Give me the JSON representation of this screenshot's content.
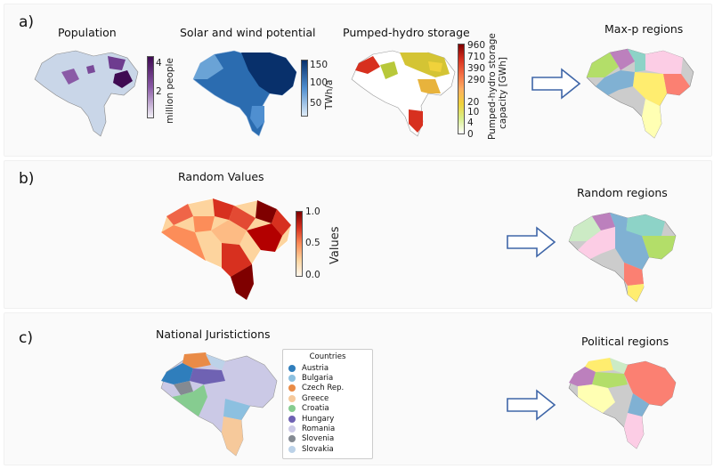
{
  "panel_a": {
    "letter": "a)",
    "maps": [
      {
        "title": "Population",
        "colorbar_label": "million people",
        "ticks": [
          "4",
          "2"
        ]
      },
      {
        "title": "Solar and wind potential",
        "colorbar_label": "TWh/a",
        "ticks": [
          "150",
          "100",
          "50"
        ]
      },
      {
        "title": "Pumped-hydro storage",
        "colorbar_label_line1": "Pumped-hydro storage",
        "colorbar_label_line2": "capacity [GWh]",
        "ticks": [
          "960",
          "710",
          "390",
          "290",
          "20",
          "10",
          "4",
          "0"
        ]
      }
    ],
    "result_title": "Max-p regions"
  },
  "panel_b": {
    "letter": "b)",
    "map_title": "Random Values",
    "colorbar_label": "Values",
    "ticks": [
      "1.0",
      "0.5",
      "0.0"
    ],
    "result_title": "Random regions"
  },
  "panel_c": {
    "letter": "c)",
    "map_title": "National Juristictions",
    "legend_title": "Countries",
    "legend": [
      {
        "name": "Austria",
        "color": "#2f7ebc"
      },
      {
        "name": "Bulgaria",
        "color": "#8cc0e0"
      },
      {
        "name": "Czech Rep.",
        "color": "#e98b47"
      },
      {
        "name": "Greece",
        "color": "#f6c99b"
      },
      {
        "name": "Croatia",
        "color": "#86cc90"
      },
      {
        "name": "Hungary",
        "color": "#6f62b3"
      },
      {
        "name": "Romania",
        "color": "#cbc9e6"
      },
      {
        "name": "Slovenia",
        "color": "#848a92"
      },
      {
        "name": "Slovakia",
        "color": "#bcd2e8"
      }
    ],
    "result_title": "Political regions"
  },
  "colors": {
    "arrow": "#3f66a8",
    "population_max": "#3f0a52",
    "solar_max": "#08306b",
    "pumped_hydro_max": "#7f0000",
    "random_max": "#7f0000"
  }
}
